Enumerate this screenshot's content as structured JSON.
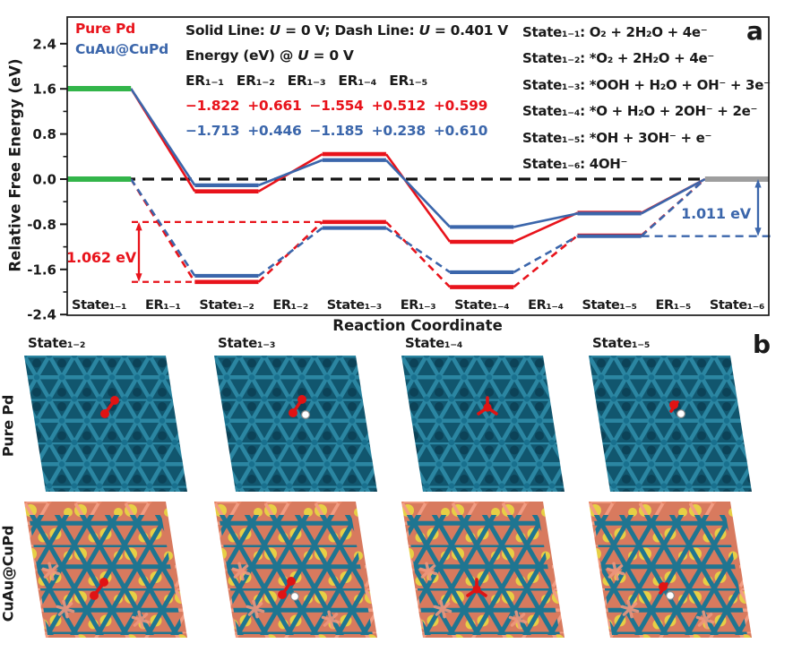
{
  "panel_a": {
    "label": "a",
    "legend": {
      "pure_pd": "Pure Pd",
      "cuau": "CuAu@CuPd"
    },
    "header": {
      "line1_parts": [
        "Solid Line: ",
        "U",
        " = 0 V; Dash Line: ",
        "U",
        " = 0.401 V"
      ],
      "line2_parts": [
        "Energy (eV) @ ",
        "U",
        " = 0 V"
      ],
      "er_headers": [
        "ER₁₋₁",
        "ER₁₋₂",
        "ER₁₋₃",
        "ER₁₋₄",
        "ER₁₋₅"
      ],
      "pd_energies": [
        "−1.822",
        "+0.661",
        "−1.554",
        "+0.512",
        "+0.599"
      ],
      "cuau_energies": [
        "−1.713",
        "+0.446",
        "−1.185",
        "+0.238",
        "+0.610"
      ]
    },
    "states_legend": [
      {
        "text": "State₁₋₁: O₂ + 2H₂O + 4e⁻"
      },
      {
        "text": "State₁₋₂: *O₂ + 2H₂O + 4e⁻"
      },
      {
        "text": "State₁₋₃: *OOH + H₂O + OH⁻ + 3e⁻"
      },
      {
        "text": "State₁₋₄: *O + H₂O + 2OH⁻ + 2e⁻"
      },
      {
        "text": "State₁₋₅: *OH + 3OH⁻ + e⁻"
      },
      {
        "text": "State₁₋₆: 4OH⁻"
      }
    ],
    "annotations": {
      "red_gap": "1.062 eV",
      "blue_gap": "1.011 eV"
    }
  },
  "chart_data": {
    "type": "line",
    "subtype": "energy-step-diagram",
    "xlabel": "Reaction Coordinate",
    "ylabel": "Relative Free Energy (eV)",
    "ylim": [
      -2.4,
      2.4
    ],
    "yticks": [
      -2.4,
      -1.6,
      -0.8,
      0.0,
      0.8,
      1.6,
      2.4
    ],
    "minor_yticks": [
      -2.0,
      -1.2,
      -0.4,
      0.4,
      1.2,
      2.0
    ],
    "x_categories": [
      "State₁₋₁",
      "ER₁₋₁",
      "State₁₋₂",
      "ER₁₋₂",
      "State₁₋₃",
      "ER₁₋₃",
      "State₁₋₄",
      "ER₁₋₄",
      "State₁₋₅",
      "ER₁₋₅",
      "State₁₋₆"
    ],
    "series": [
      {
        "name": "Pure Pd (U = 0 V)",
        "color": "#e8131b",
        "line": "solid",
        "levels": [
          1.604,
          -0.218,
          0.443,
          -1.111,
          -0.599,
          0.0
        ]
      },
      {
        "name": "CuAu@CuPd (U = 0 V)",
        "color": "#3b66ab",
        "line": "solid",
        "levels": [
          1.604,
          -0.109,
          0.337,
          -0.848,
          -0.61,
          0.0
        ]
      },
      {
        "name": "Pure Pd (U = 0.401 V)",
        "color": "#e8131b",
        "line": "dashed",
        "levels": [
          0.0,
          -1.822,
          -0.76,
          -1.913,
          -1.0,
          0.0
        ]
      },
      {
        "name": "CuAu@CuPd (U = 0.401 V)",
        "color": "#3b66ab",
        "line": "dashed",
        "levels": [
          0.0,
          -1.713,
          -0.866,
          -1.65,
          -1.011,
          0.0
        ]
      }
    ],
    "reference_levels": {
      "initial_values": [
        1.604,
        0.0
      ],
      "initial_color": "#33b54a",
      "final_value": 0.0,
      "final_color": "#9e9e9e"
    },
    "zero_line": {
      "value": 0.0,
      "style": "dashed",
      "color": "#141414"
    },
    "annotations": [
      {
        "text": "1.062 eV",
        "color": "#e8131b",
        "value_top": -0.76,
        "value_bottom": -1.822
      },
      {
        "text": "1.011 eV",
        "color": "#3b66ab",
        "value_top": 0.0,
        "value_bottom": -1.011
      }
    ],
    "legend_position": "top-left",
    "grid": false
  },
  "panel_b": {
    "label": "b",
    "columns": [
      {
        "title": "State₁₋₂"
      },
      {
        "title": "State₁₋₃"
      },
      {
        "title": "State₁₋₄"
      },
      {
        "title": "State₁₋₅"
      }
    ],
    "rows": [
      {
        "label": "Pure Pd",
        "surface": "pd",
        "adsorbates": [
          "O2",
          "OOH",
          "O",
          "OH"
        ]
      },
      {
        "label": "CuAu@CuPd",
        "surface": "cuau",
        "adsorbates": [
          "O2",
          "OOH",
          "O",
          "OH"
        ]
      }
    ],
    "atom_colors": {
      "pd": "#2e7e98",
      "cu": "#ef977e",
      "au": "#e7cf45",
      "o": "#e01313",
      "h": "#ffffff"
    }
  }
}
